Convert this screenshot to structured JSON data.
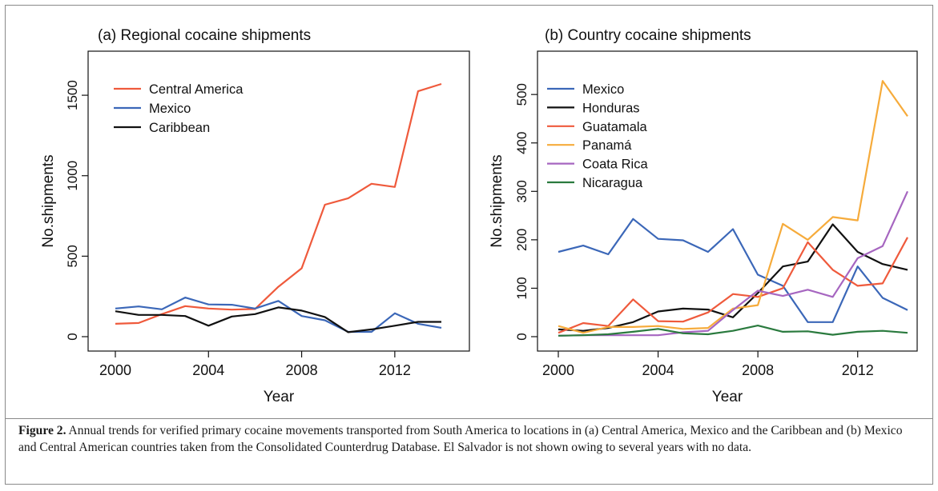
{
  "chart_data": [
    {
      "type": "line",
      "title": "(a) Regional cocaine shipments",
      "xlabel": "Year",
      "ylabel": "No.shipments",
      "xlim": [
        2000,
        2014
      ],
      "ylim": [
        0,
        1570
      ],
      "x_ticks": [
        2000,
        2004,
        2008,
        2012
      ],
      "y_ticks": [
        0,
        500,
        1000,
        1500
      ],
      "legend_position": "top-left",
      "grid": false,
      "x": [
        2000,
        2001,
        2002,
        2003,
        2004,
        2005,
        2006,
        2007,
        2008,
        2009,
        2010,
        2011,
        2012,
        2013,
        2014
      ],
      "series": [
        {
          "name": "Central America",
          "color": "#ef5a3c",
          "values": [
            80,
            85,
            140,
            190,
            175,
            168,
            172,
            310,
            425,
            820,
            860,
            950,
            930,
            1525,
            1570
          ]
        },
        {
          "name": "Mexico",
          "color": "#3b67b8",
          "values": [
            175,
            188,
            170,
            243,
            200,
            198,
            175,
            222,
            128,
            102,
            30,
            30,
            145,
            80,
            55
          ]
        },
        {
          "name": "Caribbean",
          "color": "#111111",
          "values": [
            158,
            135,
            135,
            128,
            68,
            125,
            140,
            182,
            162,
            122,
            28,
            45,
            68,
            92,
            92
          ]
        }
      ]
    },
    {
      "type": "line",
      "title": "(b) Country cocaine shipments",
      "xlabel": "Year",
      "ylabel": "No.shipments",
      "xlim": [
        2000,
        2014
      ],
      "ylim": [
        0,
        530
      ],
      "x_ticks": [
        2000,
        2004,
        2008,
        2012
      ],
      "y_ticks": [
        0,
        100,
        200,
        300,
        400,
        500
      ],
      "legend_position": "top-left",
      "grid": false,
      "x": [
        2000,
        2001,
        2002,
        2003,
        2004,
        2005,
        2006,
        2007,
        2008,
        2009,
        2010,
        2011,
        2012,
        2013,
        2014
      ],
      "series": [
        {
          "name": "Mexico",
          "color": "#3b67b8",
          "values": [
            175,
            188,
            170,
            243,
            202,
            199,
            175,
            222,
            128,
            105,
            30,
            30,
            145,
            80,
            55
          ]
        },
        {
          "name": "Honduras",
          "color": "#111111",
          "values": [
            15,
            12,
            18,
            30,
            52,
            58,
            56,
            40,
            90,
            145,
            155,
            232,
            175,
            150,
            138
          ]
        },
        {
          "name": "Guatamala",
          "color": "#ef5a3c",
          "values": [
            8,
            28,
            22,
            77,
            32,
            31,
            50,
            88,
            82,
            100,
            195,
            138,
            105,
            110,
            205
          ]
        },
        {
          "name": "Panamá",
          "color": "#f6ab3b",
          "values": [
            22,
            8,
            20,
            20,
            22,
            16,
            18,
            58,
            65,
            233,
            200,
            247,
            240,
            528,
            455
          ]
        },
        {
          "name": "Coata Rica",
          "color": "#a666c0",
          "values": [
            2,
            3,
            3,
            3,
            3,
            9,
            12,
            55,
            95,
            84,
            97,
            82,
            162,
            187,
            300
          ]
        },
        {
          "name": "Nicaragua",
          "color": "#2a7a3e",
          "values": [
            2,
            3,
            5,
            10,
            16,
            7,
            5,
            12,
            23,
            10,
            11,
            4,
            10,
            12,
            8
          ]
        }
      ]
    }
  ],
  "caption": {
    "label": "Figure 2.",
    "text": "Annual trends for verified primary cocaine movements transported from South America to locations in (a) Central America, Mexico and the Caribbean and (b) Mexico and Central American countries taken from the Consolidated Counterdrug Database. El Salvador is not shown owing to several years with no data."
  }
}
